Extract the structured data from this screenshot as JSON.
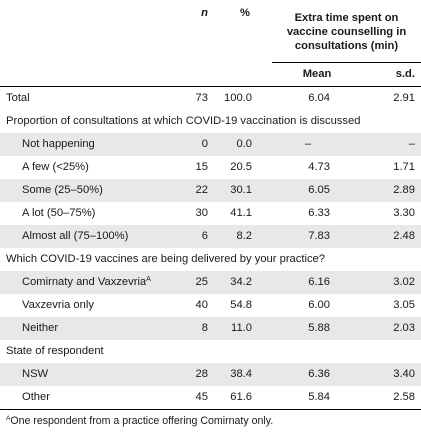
{
  "header": {
    "n": "n",
    "pct": "%",
    "extra_line1": "Extra time spent on",
    "extra_line2": "vaccine counselling in",
    "extra_line3": "consultations (min)",
    "mean": "Mean",
    "sd": "s.d."
  },
  "total": {
    "label": "Total",
    "n": "73",
    "pct": "100.0",
    "mean": "6.04",
    "sd": "2.91"
  },
  "section1": {
    "title": "Proportion of consultations at which COVID-19 vaccination is discussed",
    "rows": [
      {
        "label": "Not happening",
        "n": "0",
        "pct": "0.0",
        "mean": "–",
        "sd": "–"
      },
      {
        "label": "A few (<25%)",
        "n": "15",
        "pct": "20.5",
        "mean": "4.73",
        "sd": "1.71"
      },
      {
        "label": "Some (25–50%)",
        "n": "22",
        "pct": "30.1",
        "mean": "6.05",
        "sd": "2.89"
      },
      {
        "label": "A lot (50–75%)",
        "n": "30",
        "pct": "41.1",
        "mean": "6.33",
        "sd": "3.30"
      },
      {
        "label": "Almost all (75–100%)",
        "n": "6",
        "pct": "8.2",
        "mean": "7.83",
        "sd": "2.48"
      }
    ]
  },
  "section2": {
    "title": "Which COVID-19 vaccines are being delivered by your practice?",
    "rows": [
      {
        "label": "Comirnaty and Vaxzevria",
        "sup": "A",
        "n": "25",
        "pct": "34.2",
        "mean": "6.16",
        "sd": "3.02"
      },
      {
        "label": "Vaxzevria only",
        "n": "40",
        "pct": "54.8",
        "mean": "6.00",
        "sd": "3.05"
      },
      {
        "label": "Neither",
        "n": "8",
        "pct": "11.0",
        "mean": "5.88",
        "sd": "2.03"
      }
    ]
  },
  "section3": {
    "title": "State of respondent",
    "rows": [
      {
        "label": "NSW",
        "n": "28",
        "pct": "38.4",
        "mean": "6.36",
        "sd": "3.40"
      },
      {
        "label": "Other",
        "n": "45",
        "pct": "61.6",
        "mean": "5.84",
        "sd": "2.58"
      }
    ]
  },
  "footnote": {
    "sup": "A",
    "text": "One respondent from a practice offering Comirnaty only."
  }
}
